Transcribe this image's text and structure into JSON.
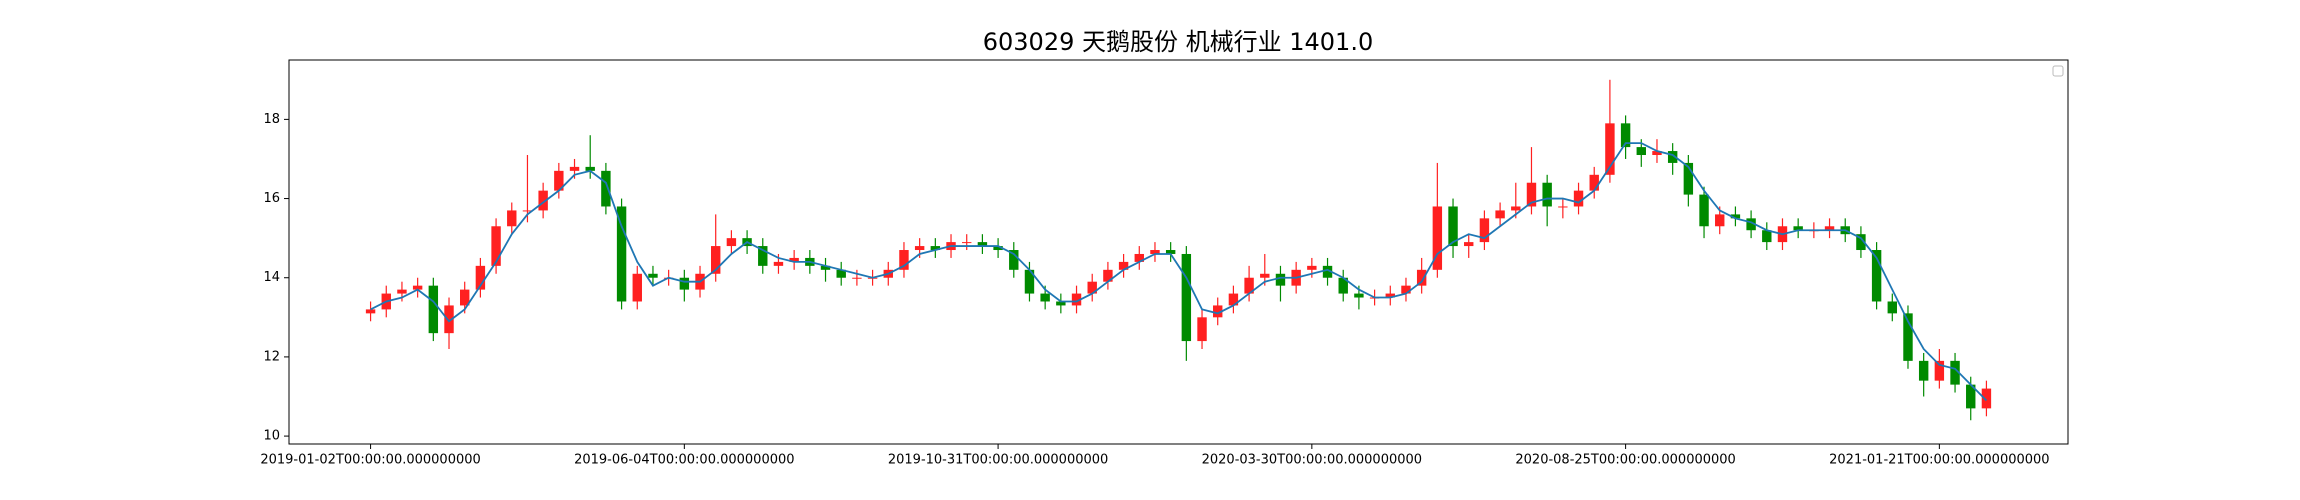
{
  "chart_data": {
    "type": "candlestick",
    "title": "603029 天鹅股份 机械行业 1401.0",
    "x": [
      0,
      5,
      10,
      15,
      20,
      25,
      30,
      35,
      40,
      45,
      50,
      55,
      60,
      65,
      70,
      75,
      80,
      85,
      90,
      95,
      100,
      105,
      110,
      115,
      120,
      125,
      130,
      135,
      140,
      145,
      150,
      155,
      160,
      165,
      170,
      175,
      180,
      185,
      190,
      195,
      200,
      205,
      210,
      215,
      220,
      225,
      230,
      235,
      240,
      245,
      250,
      255,
      260,
      265,
      270,
      275,
      280,
      285,
      290,
      295,
      300,
      305,
      310,
      315,
      320,
      325,
      330,
      335,
      340,
      345,
      350,
      355,
      360,
      365,
      370,
      375,
      380,
      385,
      390,
      395,
      400,
      405,
      410,
      415,
      420,
      425,
      430,
      435,
      440,
      445,
      450,
      455,
      460,
      465,
      470,
      475,
      480,
      485,
      490,
      495,
      500,
      505,
      510,
      515
    ],
    "open": [
      13.1,
      13.2,
      13.6,
      13.7,
      13.8,
      12.6,
      13.3,
      13.7,
      14.3,
      15.3,
      15.7,
      15.7,
      16.2,
      16.7,
      16.8,
      16.7,
      15.8,
      13.4,
      14.1,
      14.0,
      14.0,
      13.7,
      14.1,
      14.8,
      15.0,
      14.8,
      14.3,
      14.4,
      14.5,
      14.3,
      14.2,
      14.0,
      14.0,
      14.0,
      14.2,
      14.7,
      14.8,
      14.7,
      14.9,
      14.9,
      14.8,
      14.7,
      14.2,
      13.6,
      13.4,
      13.3,
      13.6,
      13.9,
      14.2,
      14.4,
      14.6,
      14.7,
      14.6,
      12.4,
      13.0,
      13.3,
      13.6,
      14.0,
      14.1,
      13.8,
      14.2,
      14.3,
      14.0,
      13.6,
      13.5,
      13.5,
      13.6,
      13.8,
      14.2,
      15.8,
      14.8,
      14.9,
      15.5,
      15.7,
      15.8,
      16.4,
      15.8,
      15.8,
      16.2,
      16.6,
      17.9,
      17.3,
      17.1,
      17.2,
      16.9,
      16.1,
      15.3,
      15.6,
      15.5,
      15.2,
      14.9,
      15.3,
      15.2,
      15.2,
      15.3,
      15.1,
      14.7,
      13.4,
      13.1,
      11.9,
      11.4,
      11.9,
      11.3,
      10.7
    ],
    "high": [
      13.4,
      13.8,
      13.9,
      14.0,
      14.0,
      13.5,
      13.9,
      14.5,
      15.5,
      15.9,
      17.1,
      16.4,
      16.9,
      17.0,
      17.6,
      16.9,
      16.0,
      14.3,
      14.3,
      14.2,
      14.2,
      14.3,
      15.6,
      15.2,
      15.2,
      15.0,
      14.6,
      14.7,
      14.7,
      14.5,
      14.4,
      14.2,
      14.2,
      14.4,
      14.9,
      15.0,
      15.0,
      15.1,
      15.1,
      15.1,
      15.0,
      14.9,
      14.4,
      13.8,
      13.6,
      13.8,
      14.1,
      14.4,
      14.6,
      14.8,
      14.9,
      14.9,
      14.8,
      13.2,
      13.5,
      13.8,
      14.3,
      14.6,
      14.3,
      14.4,
      14.5,
      14.5,
      14.2,
      13.8,
      13.7,
      13.8,
      14.0,
      14.5,
      16.9,
      16.0,
      15.1,
      15.7,
      15.9,
      16.4,
      17.3,
      16.6,
      16.0,
      16.4,
      16.8,
      19.0,
      18.1,
      17.5,
      17.5,
      17.4,
      17.1,
      16.3,
      15.8,
      15.8,
      15.7,
      15.4,
      15.5,
      15.5,
      15.4,
      15.5,
      15.5,
      15.3,
      14.9,
      13.6,
      13.3,
      12.1,
      12.2,
      12.1,
      11.5,
      11.4
    ],
    "low": [
      12.9,
      13.0,
      13.4,
      13.5,
      12.4,
      12.2,
      13.1,
      13.5,
      14.1,
      15.1,
      15.4,
      15.5,
      16.0,
      16.5,
      16.5,
      15.6,
      13.2,
      13.2,
      13.8,
      13.8,
      13.4,
      13.5,
      13.9,
      14.6,
      14.6,
      14.1,
      14.1,
      14.2,
      14.1,
      13.9,
      13.8,
      13.8,
      13.8,
      13.8,
      14.0,
      14.5,
      14.5,
      14.5,
      14.7,
      14.6,
      14.5,
      14.0,
      13.4,
      13.2,
      13.1,
      13.1,
      13.4,
      13.7,
      14.0,
      14.2,
      14.4,
      14.4,
      11.9,
      12.2,
      12.8,
      13.1,
      13.4,
      13.8,
      13.4,
      13.6,
      14.0,
      13.8,
      13.4,
      13.2,
      13.3,
      13.3,
      13.4,
      13.6,
      14.0,
      14.5,
      14.5,
      14.7,
      15.3,
      15.5,
      15.6,
      15.3,
      15.5,
      15.6,
      16.0,
      16.4,
      17.0,
      16.8,
      16.9,
      16.6,
      15.8,
      15.0,
      15.1,
      15.3,
      15.0,
      14.7,
      14.7,
      15.0,
      15.0,
      15.0,
      14.9,
      14.5,
      13.2,
      12.9,
      11.7,
      11.0,
      11.2,
      11.1,
      10.4,
      10.5
    ],
    "close": [
      13.2,
      13.6,
      13.7,
      13.8,
      12.6,
      13.3,
      13.7,
      14.3,
      15.3,
      15.7,
      15.7,
      16.2,
      16.7,
      16.8,
      16.7,
      15.8,
      13.4,
      14.1,
      14.0,
      14.0,
      13.7,
      14.1,
      14.8,
      15.0,
      14.8,
      14.3,
      14.4,
      14.5,
      14.3,
      14.2,
      14.0,
      14.0,
      14.0,
      14.2,
      14.7,
      14.8,
      14.7,
      14.9,
      14.9,
      14.8,
      14.7,
      14.2,
      13.6,
      13.4,
      13.3,
      13.6,
      13.9,
      14.2,
      14.4,
      14.6,
      14.7,
      14.6,
      12.4,
      13.0,
      13.3,
      13.6,
      14.0,
      14.1,
      13.8,
      14.2,
      14.3,
      14.0,
      13.6,
      13.5,
      13.5,
      13.6,
      13.8,
      14.2,
      15.8,
      14.8,
      14.9,
      15.5,
      15.7,
      15.8,
      16.4,
      15.8,
      15.8,
      16.2,
      16.6,
      17.9,
      17.3,
      17.1,
      17.2,
      16.9,
      16.1,
      15.3,
      15.6,
      15.5,
      15.2,
      14.9,
      15.3,
      15.2,
      15.2,
      15.3,
      15.1,
      14.7,
      13.4,
      13.1,
      11.9,
      11.4,
      11.9,
      11.3,
      10.7,
      11.2
    ],
    "up_color": "#ff2020",
    "down_color": "#008a00",
    "series": [
      {
        "color": "#1f77b4",
        "values": [
          13.2,
          13.4,
          13.5,
          13.7,
          13.4,
          12.9,
          13.2,
          13.8,
          14.4,
          15.1,
          15.6,
          15.9,
          16.2,
          16.6,
          16.7,
          16.4,
          15.3,
          14.4,
          13.8,
          14.0,
          13.9,
          13.9,
          14.2,
          14.6,
          14.9,
          14.7,
          14.5,
          14.4,
          14.4,
          14.3,
          14.2,
          14.1,
          14.0,
          14.1,
          14.3,
          14.6,
          14.7,
          14.8,
          14.8,
          14.8,
          14.8,
          14.6,
          14.2,
          13.7,
          13.4,
          13.4,
          13.6,
          13.9,
          14.2,
          14.4,
          14.6,
          14.6,
          14.0,
          13.2,
          13.1,
          13.3,
          13.6,
          13.9,
          14.0,
          14.0,
          14.1,
          14.2,
          14.0,
          13.7,
          13.5,
          13.5,
          13.6,
          13.9,
          14.6,
          14.9,
          15.1,
          15.0,
          15.3,
          15.6,
          15.9,
          16.0,
          16.0,
          15.9,
          16.2,
          16.8,
          17.4,
          17.4,
          17.2,
          17.1,
          16.8,
          16.2,
          15.7,
          15.5,
          15.4,
          15.2,
          15.1,
          15.2,
          15.2,
          15.2,
          15.2,
          15.0,
          14.5,
          13.7,
          12.9,
          12.2,
          11.8,
          11.7,
          11.3,
          10.9
        ]
      }
    ],
    "xlim": [
      -26,
      541
    ],
    "ylim": [
      9.8,
      19.5
    ],
    "xticks": [
      {
        "value": 0,
        "label": "2019-01-02T00:00:00.000000000"
      },
      {
        "value": 100,
        "label": "2019-06-04T00:00:00.000000000"
      },
      {
        "value": 200,
        "label": "2019-10-31T00:00:00.000000000"
      },
      {
        "value": 300,
        "label": "2020-03-30T00:00:00.000000000"
      },
      {
        "value": 400,
        "label": "2020-08-25T00:00:00.000000000"
      },
      {
        "value": 500,
        "label": "2021-01-21T00:00:00.000000000"
      }
    ],
    "yticks": [
      10,
      12,
      14,
      16,
      18
    ]
  }
}
